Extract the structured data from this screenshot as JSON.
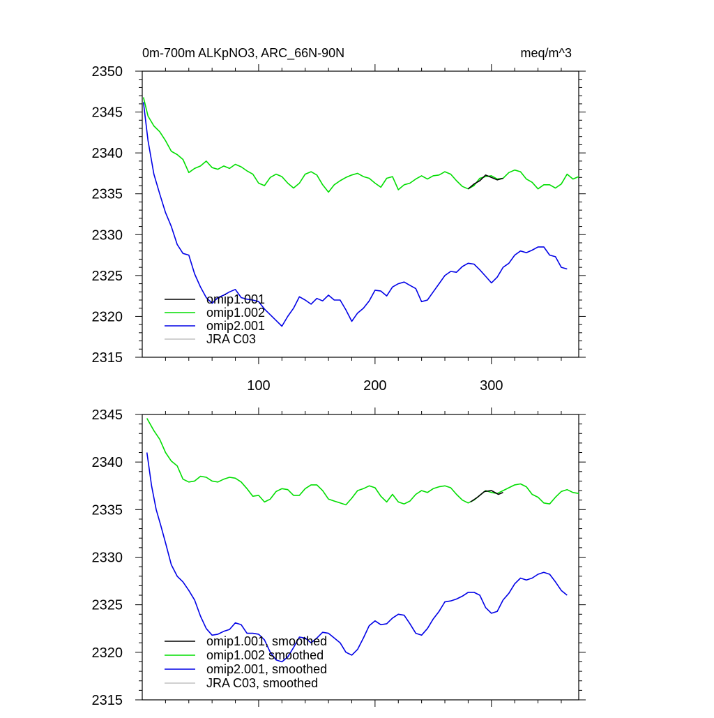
{
  "chart_data": [
    {
      "type": "line",
      "title_left": "0m-700m ALKpNO3, ARC_66N-90N",
      "title_right": "meq/m^3",
      "xlabel": "",
      "ylabel": "",
      "xlim": [
        0,
        375
      ],
      "ylim": [
        2315,
        2350
      ],
      "x_ticks": [
        100,
        200,
        300
      ],
      "x_tick_labels": [
        "100",
        "200",
        "300"
      ],
      "y_ticks": [
        2315,
        2320,
        2325,
        2330,
        2335,
        2340,
        2345,
        2350
      ],
      "y_tick_labels": [
        "2315",
        "2320",
        "2325",
        "2330",
        "2335",
        "2340",
        "2345",
        "2350"
      ],
      "legend_position": "bottom-left",
      "series": [
        {
          "name": "omip1.001",
          "color": "#000000",
          "x": [
            280,
            285,
            290,
            295,
            300,
            305,
            310
          ],
          "y": [
            2335.6,
            2336.2,
            2336.6,
            2337.3,
            2337.0,
            2336.7,
            2336.9
          ]
        },
        {
          "name": "omip1.002",
          "color": "#00dd00",
          "x": [
            1,
            5,
            10,
            15,
            20,
            25,
            30,
            35,
            40,
            45,
            50,
            55,
            60,
            65,
            70,
            75,
            80,
            85,
            90,
            95,
            100,
            105,
            110,
            115,
            120,
            125,
            130,
            135,
            140,
            145,
            150,
            155,
            160,
            165,
            170,
            175,
            180,
            185,
            190,
            195,
            200,
            205,
            210,
            215,
            220,
            225,
            230,
            235,
            240,
            245,
            250,
            255,
            260,
            265,
            270,
            275,
            280,
            285,
            290,
            295,
            300,
            305,
            310,
            315,
            320,
            325,
            330,
            335,
            340,
            345,
            350,
            355,
            360,
            365,
            370,
            375
          ],
          "y": [
            2346.8,
            2344.5,
            2343.3,
            2342.6,
            2341.5,
            2340.2,
            2339.8,
            2339.2,
            2337.6,
            2338.1,
            2338.4,
            2339.0,
            2338.2,
            2338.0,
            2338.4,
            2338.1,
            2338.6,
            2338.3,
            2337.8,
            2337.4,
            2336.3,
            2336.0,
            2337.0,
            2337.4,
            2337.1,
            2336.3,
            2335.7,
            2336.3,
            2337.4,
            2337.7,
            2337.3,
            2336.1,
            2335.2,
            2336.1,
            2336.6,
            2337.0,
            2337.3,
            2337.5,
            2337.1,
            2336.9,
            2336.3,
            2335.8,
            2336.9,
            2337.1,
            2335.5,
            2336.1,
            2336.3,
            2336.8,
            2337.2,
            2336.8,
            2337.2,
            2337.3,
            2337.7,
            2337.4,
            2336.6,
            2335.9,
            2335.6,
            2336.0,
            2336.9,
            2337.1,
            2337.2,
            2336.8,
            2336.9,
            2337.6,
            2337.9,
            2337.7,
            2336.8,
            2336.4,
            2335.6,
            2336.1,
            2336.1,
            2335.7,
            2336.2,
            2337.4,
            2336.8,
            2337.1
          ]
        },
        {
          "name": "omip2.001",
          "color": "#0000e6",
          "x": [
            1,
            5,
            10,
            15,
            20,
            25,
            30,
            35,
            40,
            45,
            50,
            55,
            60,
            65,
            70,
            75,
            80,
            85,
            90,
            95,
            100,
            105,
            110,
            115,
            120,
            125,
            130,
            135,
            140,
            145,
            150,
            155,
            160,
            165,
            170,
            175,
            180,
            185,
            190,
            195,
            200,
            205,
            210,
            215,
            220,
            225,
            230,
            235,
            240,
            245,
            250,
            255,
            260,
            265,
            270,
            275,
            280,
            285,
            290,
            295,
            300,
            305,
            310,
            315,
            320,
            325,
            330,
            335,
            340,
            345,
            350,
            355,
            360,
            365
          ],
          "y": [
            2346.2,
            2341.5,
            2337.4,
            2335.0,
            2332.7,
            2331.0,
            2328.8,
            2327.7,
            2327.5,
            2325.2,
            2323.6,
            2322.3,
            2321.6,
            2322.3,
            2322.6,
            2323.0,
            2323.3,
            2322.3,
            2322.1,
            2322.0,
            2321.8,
            2320.9,
            2320.2,
            2319.5,
            2318.8,
            2320.0,
            2321.0,
            2322.4,
            2322.0,
            2321.5,
            2322.2,
            2321.9,
            2322.6,
            2322.0,
            2322.0,
            2320.8,
            2319.4,
            2320.4,
            2321.0,
            2321.9,
            2323.2,
            2323.1,
            2322.5,
            2323.6,
            2324.0,
            2324.2,
            2323.8,
            2323.4,
            2321.8,
            2322.0,
            2323.0,
            2324.0,
            2325.0,
            2325.5,
            2325.4,
            2326.1,
            2326.5,
            2326.4,
            2325.7,
            2324.9,
            2324.1,
            2324.8,
            2326.0,
            2326.5,
            2327.5,
            2328.0,
            2327.8,
            2328.1,
            2328.5,
            2328.5,
            2327.5,
            2327.3,
            2326.0,
            2325.8
          ]
        },
        {
          "name": "JRA C03",
          "color": "#c0c0c0",
          "x": [],
          "y": []
        }
      ]
    },
    {
      "type": "line",
      "xlabel": "",
      "ylabel": "",
      "xlim": [
        0,
        375
      ],
      "ylim": [
        2315,
        2345
      ],
      "x_ticks": [
        100,
        200,
        300
      ],
      "x_tick_labels": [
        "",
        "",
        ""
      ],
      "y_ticks": [
        2315,
        2320,
        2325,
        2330,
        2335,
        2340,
        2345
      ],
      "y_tick_labels": [
        "2315",
        "2320",
        "2325",
        "2330",
        "2335",
        "2340",
        "2345"
      ],
      "legend_position": "bottom-left",
      "series": [
        {
          "name": "omip1.001, smoothed",
          "color": "#000000",
          "x": [
            282,
            288,
            294,
            300,
            306,
            310
          ],
          "y": [
            2335.8,
            2336.3,
            2336.9,
            2337.0,
            2336.6,
            2336.8
          ]
        },
        {
          "name": "omip1.002 smoothed",
          "color": "#00dd00",
          "x": [
            4,
            10,
            15,
            20,
            25,
            30,
            35,
            40,
            45,
            50,
            55,
            60,
            65,
            70,
            75,
            80,
            85,
            90,
            95,
            100,
            105,
            110,
            115,
            120,
            125,
            130,
            135,
            140,
            145,
            150,
            155,
            160,
            165,
            170,
            175,
            180,
            185,
            190,
            195,
            200,
            205,
            210,
            215,
            220,
            225,
            230,
            235,
            240,
            245,
            250,
            255,
            260,
            265,
            270,
            275,
            280,
            285,
            290,
            295,
            300,
            305,
            310,
            315,
            320,
            325,
            330,
            335,
            340,
            345,
            350,
            355,
            360,
            365,
            370,
            375
          ],
          "y": [
            2344.6,
            2343.3,
            2342.4,
            2341.0,
            2340.1,
            2339.6,
            2338.2,
            2337.9,
            2338.0,
            2338.5,
            2338.4,
            2338.0,
            2337.9,
            2338.2,
            2338.4,
            2338.3,
            2337.9,
            2337.2,
            2336.4,
            2336.5,
            2335.8,
            2336.1,
            2336.9,
            2337.2,
            2337.1,
            2336.5,
            2336.5,
            2337.2,
            2337.6,
            2337.6,
            2337.0,
            2336.1,
            2335.9,
            2335.7,
            2335.5,
            2336.2,
            2337.0,
            2337.2,
            2337.5,
            2337.3,
            2336.4,
            2335.8,
            2336.6,
            2335.8,
            2335.6,
            2335.9,
            2336.6,
            2337.0,
            2336.8,
            2337.2,
            2337.4,
            2337.5,
            2337.3,
            2336.6,
            2336.0,
            2335.7,
            2336.0,
            2336.5,
            2337.0,
            2336.8,
            2336.7,
            2337.0,
            2337.3,
            2337.6,
            2337.7,
            2337.4,
            2336.6,
            2336.3,
            2335.7,
            2335.6,
            2336.3,
            2336.9,
            2337.1,
            2336.8,
            2336.7
          ]
        },
        {
          "name": "omip2.001, smoothed",
          "color": "#0000e6",
          "x": [
            4,
            8,
            12,
            16,
            20,
            25,
            30,
            35,
            40,
            45,
            50,
            55,
            60,
            65,
            70,
            75,
            80,
            85,
            90,
            95,
            100,
            105,
            110,
            115,
            120,
            125,
            130,
            135,
            140,
            145,
            150,
            155,
            160,
            165,
            170,
            175,
            180,
            185,
            190,
            195,
            200,
            205,
            210,
            215,
            220,
            225,
            230,
            235,
            240,
            245,
            250,
            255,
            260,
            265,
            270,
            275,
            280,
            285,
            290,
            295,
            300,
            305,
            310,
            315,
            320,
            325,
            330,
            335,
            340,
            345,
            350,
            355,
            360,
            365
          ],
          "y": [
            2341.0,
            2337.5,
            2335.0,
            2333.3,
            2331.5,
            2329.2,
            2328.0,
            2327.4,
            2326.5,
            2325.5,
            2323.8,
            2322.5,
            2321.8,
            2321.9,
            2322.2,
            2322.4,
            2323.1,
            2322.9,
            2322.0,
            2322.0,
            2321.9,
            2321.3,
            2320.0,
            2319.2,
            2319.0,
            2319.5,
            2320.5,
            2321.6,
            2321.5,
            2321.0,
            2321.5,
            2322.1,
            2322.0,
            2321.5,
            2321.0,
            2320.0,
            2319.7,
            2320.3,
            2321.5,
            2322.8,
            2323.3,
            2322.9,
            2323.0,
            2323.6,
            2324.0,
            2323.9,
            2323.0,
            2322.0,
            2321.8,
            2322.5,
            2323.5,
            2324.3,
            2325.3,
            2325.4,
            2325.6,
            2325.9,
            2326.3,
            2326.3,
            2326.0,
            2324.7,
            2324.1,
            2324.3,
            2325.5,
            2326.2,
            2327.2,
            2327.8,
            2327.6,
            2327.8,
            2328.2,
            2328.4,
            2328.2,
            2327.4,
            2326.5,
            2326.0
          ]
        },
        {
          "name": "JRA C03, smoothed",
          "color": "#c0c0c0",
          "x": [],
          "y": []
        }
      ]
    }
  ]
}
